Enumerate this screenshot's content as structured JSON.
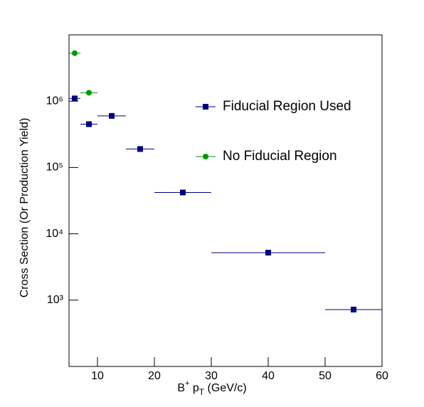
{
  "chart_data": {
    "type": "scatter",
    "x_label": [
      "B",
      "+",
      " p",
      "T",
      " (GeV/c)"
    ],
    "y_label": "Cross Section (Or Production Yield)",
    "xlim": [
      5,
      60
    ],
    "ylim": [
      100,
      10000000
    ],
    "ylog": true,
    "xticks": [
      10,
      20,
      30,
      40,
      50,
      60
    ],
    "yticks": [
      {
        "value": 1000,
        "label": "10³"
      },
      {
        "value": 10000,
        "label": "10⁴"
      },
      {
        "value": 100000,
        "label": "10⁵"
      },
      {
        "value": 1000000,
        "label": "10⁶"
      }
    ],
    "series": [
      {
        "name": "Fiducial Region Used",
        "color": "#000080",
        "marker": "square",
        "x": [
          6,
          8.5,
          12.5,
          17.5,
          25,
          40,
          55
        ],
        "xerr": [
          1,
          1.5,
          2.5,
          2.5,
          5,
          10,
          5
        ],
        "values": [
          1100000,
          450000,
          600000,
          190000,
          42000,
          5200,
          720
        ]
      },
      {
        "name": "No Fiducial Region",
        "color": "#009900",
        "marker": "circle",
        "x": [
          6,
          8.5
        ],
        "xerr": [
          1,
          1.5
        ],
        "values": [
          5300000,
          1340000
        ]
      }
    ]
  }
}
